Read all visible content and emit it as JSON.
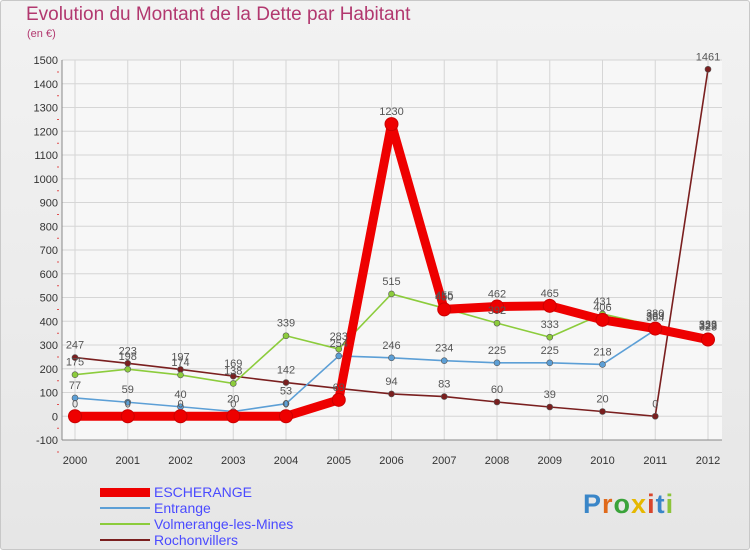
{
  "colors": {
    "title": "#b2386f",
    "axis_text": "#333333",
    "label_text": "#555555",
    "legend_text": "#4a4aff"
  },
  "logo": {
    "letters": [
      "P",
      "r",
      "o",
      "x",
      "i",
      "t",
      "i"
    ],
    "colors": [
      "#3a86c8",
      "#e06a1b",
      "#3aa33a",
      "#e6b800",
      "#d8452c",
      "#3a86c8",
      "#8cc43a"
    ]
  },
  "chart_data": {
    "type": "line",
    "title": "Evolution du Montant de la Dette par Habitant",
    "subtitle": "(en €)",
    "x": [
      "2000",
      "2001",
      "2002",
      "2003",
      "2004",
      "2005",
      "2006",
      "2007",
      "2008",
      "2009",
      "2010",
      "2011",
      "2012"
    ],
    "ylim": [
      -100,
      1500
    ],
    "yticks": [
      -100,
      0,
      100,
      200,
      300,
      400,
      500,
      600,
      700,
      800,
      900,
      1000,
      1100,
      1200,
      1300,
      1400,
      1500
    ],
    "grid": true,
    "legend_position": "bottom-left",
    "series": [
      {
        "name": "Rochonvillers",
        "color": "#7a1f1f",
        "values": [
          247,
          223,
          197,
          169,
          142,
          117,
          94,
          83,
          60,
          39,
          20,
          0,
          1461
        ],
        "labels": [
          "247",
          "223",
          "197",
          "169",
          "142",
          "",
          "94",
          "83",
          "60",
          "39",
          "20",
          "0",
          "1461"
        ]
      },
      {
        "name": "Volmerange-les-Mines",
        "color": "#8ccc3c",
        "values": [
          175,
          198,
          174,
          138,
          339,
          283,
          515,
          455,
          392,
          333,
          431,
          380,
          333
        ],
        "labels": [
          "175",
          "198",
          "174",
          "138",
          "339",
          "283",
          "515",
          "455",
          "392",
          "333",
          "431",
          "380",
          "333"
        ]
      },
      {
        "name": "Entrange",
        "color": "#5c9fd6",
        "values": [
          77,
          59,
          40,
          20,
          53,
          254,
          246,
          234,
          225,
          225,
          218,
          364,
          329
        ],
        "labels": [
          "77",
          "59",
          "40",
          "20",
          "53",
          "254",
          "246",
          "234",
          "225",
          "225",
          "218",
          "364",
          "329"
        ]
      },
      {
        "name": "ESCHERANGE",
        "color": "#ee0000",
        "values": [
          0,
          0,
          0,
          0,
          0,
          69,
          1230,
          450,
          462,
          465,
          406,
          369,
          323
        ],
        "labels": [
          "0",
          "0",
          "0",
          "0",
          "0",
          "69",
          "1230",
          "450",
          "462",
          "465",
          "406",
          "369",
          "323"
        ]
      }
    ],
    "legend": [
      {
        "name": "ESCHERANGE",
        "color": "#ee0000",
        "thick": true
      },
      {
        "name": "Entrange",
        "color": "#5c9fd6",
        "thick": false
      },
      {
        "name": "Volmerange-les-Mines",
        "color": "#8ccc3c",
        "thick": false
      },
      {
        "name": "Rochonvillers",
        "color": "#7a1f1f",
        "thick": false
      }
    ]
  }
}
